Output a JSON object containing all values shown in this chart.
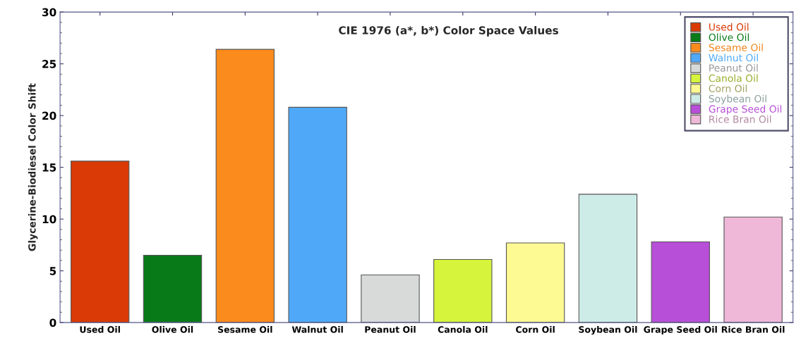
{
  "chart_data": {
    "type": "bar",
    "title": "CIE 1976 (a*, b*) Color Space Values",
    "ylabel": "Glycerine-Biodiesel Color Shift",
    "categories": [
      "Used Oil",
      "Olive Oil",
      "Sesame Oil",
      "Walnut Oil",
      "Peanut Oil",
      "Canola Oil",
      "Corn Oil",
      "Soybean Oil",
      "Grape Seed Oil",
      "Rice Bran Oil"
    ],
    "series": [
      {
        "name": "Used Oil",
        "color": "#d93a06",
        "values": [
          15.6,
          null,
          null,
          null,
          null,
          null,
          null,
          null,
          null,
          null
        ]
      },
      {
        "name": "Olive Oil",
        "color": "#087b18",
        "values": [
          null,
          6.5,
          null,
          null,
          null,
          null,
          null,
          null,
          null,
          null
        ]
      },
      {
        "name": "Sesame Oil",
        "color": "#fb8b1c",
        "values": [
          null,
          null,
          26.4,
          null,
          null,
          null,
          null,
          null,
          null,
          null
        ]
      },
      {
        "name": "Walnut Oil",
        "color": "#4fa9f8",
        "values": [
          null,
          null,
          null,
          20.8,
          null,
          null,
          null,
          null,
          null,
          null
        ]
      },
      {
        "name": "Peanut Oil",
        "color": "#d8dada",
        "values": [
          null,
          null,
          null,
          null,
          4.6,
          null,
          null,
          null,
          null,
          null
        ]
      },
      {
        "name": "Canola Oil",
        "color": "#d6f43c",
        "values": [
          null,
          null,
          null,
          null,
          null,
          6.1,
          null,
          null,
          null,
          null
        ]
      },
      {
        "name": "Corn Oil",
        "color": "#fdf993",
        "values": [
          null,
          null,
          null,
          null,
          null,
          null,
          7.7,
          null,
          null,
          null
        ]
      },
      {
        "name": "Soybean Oil",
        "color": "#cdece7",
        "values": [
          null,
          null,
          null,
          null,
          null,
          null,
          null,
          12.4,
          null,
          null
        ]
      },
      {
        "name": "Grape Seed Oil",
        "color": "#b84fd8",
        "values": [
          null,
          null,
          null,
          null,
          null,
          null,
          null,
          null,
          7.8,
          null
        ]
      },
      {
        "name": "Rice Bran Oil",
        "color": "#efb8d8",
        "values": [
          null,
          null,
          null,
          null,
          null,
          null,
          null,
          null,
          null,
          10.2
        ]
      }
    ],
    "ylim": [
      0,
      30
    ],
    "yticks": [
      0,
      5,
      10,
      15,
      20,
      25,
      30
    ],
    "grid": false,
    "legend": "top right"
  }
}
